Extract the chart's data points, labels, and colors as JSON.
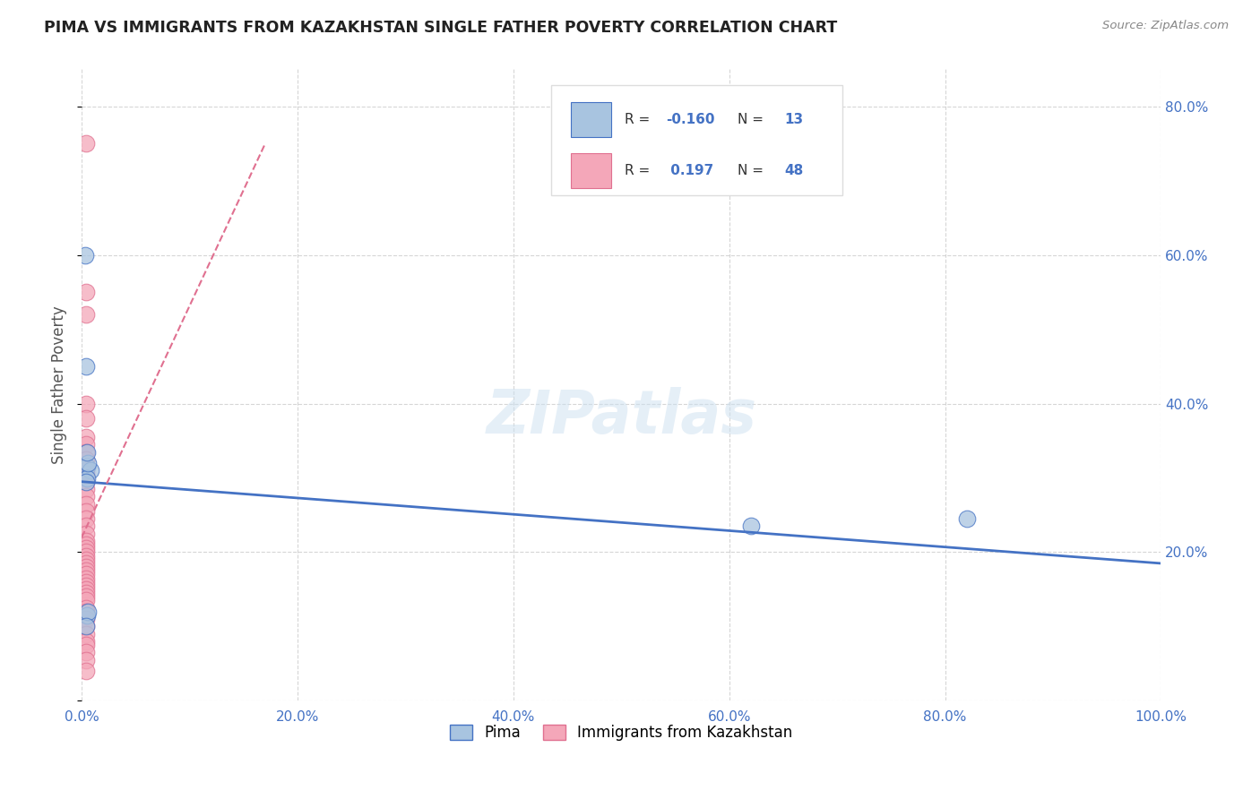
{
  "title": "PIMA VS IMMIGRANTS FROM KAZAKHSTAN SINGLE FATHER POVERTY CORRELATION CHART",
  "source": "Source: ZipAtlas.com",
  "ylabel": "Single Father Poverty",
  "legend_label1": "Pima",
  "legend_label2": "Immigrants from Kazakhstan",
  "r1": -0.16,
  "n1": 13,
  "r2": 0.197,
  "n2": 48,
  "color_blue": "#a8c4e0",
  "color_pink": "#f4a7b9",
  "line_blue": "#4472c4",
  "line_pink": "#e07090",
  "axis_label_color": "#4472c4",
  "xlim": [
    0.0,
    1.0
  ],
  "ylim": [
    0.0,
    0.85
  ],
  "watermark": "ZIPatlas",
  "pima_x": [
    0.005,
    0.008,
    0.005,
    0.004,
    0.006,
    0.005,
    0.003,
    0.004,
    0.62,
    0.82,
    0.005,
    0.006,
    0.004
  ],
  "pima_y": [
    0.315,
    0.31,
    0.3,
    0.295,
    0.32,
    0.335,
    0.6,
    0.45,
    0.235,
    0.245,
    0.115,
    0.12,
    0.1
  ],
  "kaz_x": [
    0.004,
    0.004,
    0.004,
    0.004,
    0.004,
    0.004,
    0.004,
    0.004,
    0.004,
    0.004,
    0.004,
    0.004,
    0.004,
    0.004,
    0.004,
    0.004,
    0.004,
    0.004,
    0.004,
    0.004,
    0.004,
    0.004,
    0.004,
    0.004,
    0.004,
    0.004,
    0.004,
    0.004,
    0.004,
    0.004,
    0.004,
    0.004,
    0.004,
    0.004,
    0.004,
    0.004,
    0.004,
    0.004,
    0.004,
    0.004,
    0.004,
    0.004,
    0.004,
    0.004,
    0.004,
    0.004,
    0.004,
    0.004
  ],
  "kaz_y": [
    0.75,
    0.55,
    0.52,
    0.4,
    0.38,
    0.355,
    0.345,
    0.335,
    0.325,
    0.315,
    0.31,
    0.305,
    0.3,
    0.295,
    0.285,
    0.275,
    0.265,
    0.255,
    0.245,
    0.235,
    0.225,
    0.215,
    0.21,
    0.205,
    0.2,
    0.195,
    0.19,
    0.185,
    0.18,
    0.175,
    0.17,
    0.165,
    0.16,
    0.155,
    0.15,
    0.145,
    0.14,
    0.135,
    0.125,
    0.12,
    0.11,
    0.1,
    0.09,
    0.08,
    0.075,
    0.065,
    0.055,
    0.04
  ],
  "blue_line_x": [
    0.0,
    1.0
  ],
  "blue_line_y": [
    0.295,
    0.185
  ],
  "pink_line_x": [
    0.0,
    0.17
  ],
  "pink_line_y": [
    0.22,
    0.75
  ]
}
